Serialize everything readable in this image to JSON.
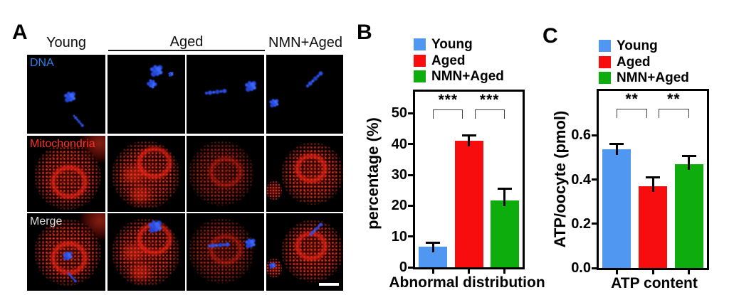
{
  "figure": {
    "panels": {
      "A": {
        "label": "A",
        "columns": [
          "Young",
          "Aged",
          "NMN+Aged"
        ],
        "row_labels": [
          "DNA",
          "Mitochondria",
          "Merge"
        ],
        "label_colors": {
          "dna": "#2f7fe6",
          "mitochondria": "#ff3228",
          "merge": "#dcdcdc"
        },
        "signal_colors": {
          "dna": "#2e55f2",
          "mitochondria": "#ef2012"
        },
        "scale_bar_color": "#ffffff"
      },
      "B": {
        "label": "B"
      },
      "C": {
        "label": "C"
      }
    }
  },
  "legend": {
    "position": "top-left-outside",
    "items": [
      {
        "label": "Young",
        "color": "#4f97f0"
      },
      {
        "label": "Aged",
        "color": "#f70d0d"
      },
      {
        "label": "NMN+Aged",
        "color": "#0cad0c"
      }
    ]
  },
  "chart_data": [
    {
      "id": "abnormal-distribution",
      "type": "bar",
      "title": "",
      "categories": [
        "Young",
        "Aged",
        "NMN+Aged"
      ],
      "values": [
        6.8,
        41,
        21.8
      ],
      "errors": [
        1.2,
        2.0,
        3.8
      ],
      "colors": [
        "#4f97f0",
        "#f70d0d",
        "#0cad0c"
      ],
      "xlabel": "Abnormal distribution",
      "ylabel": "percentage (%)",
      "yticks": [
        {
          "value": 0,
          "label": "0"
        },
        {
          "value": 10,
          "label": "10"
        },
        {
          "value": 20,
          "label": "20"
        },
        {
          "value": 30,
          "label": "30"
        },
        {
          "value": 40,
          "label": "40"
        },
        {
          "value": 50,
          "label": "50"
        }
      ],
      "ylim": [
        0,
        57
      ],
      "grid": false,
      "significance": [
        {
          "between": [
            0,
            1
          ],
          "label": "***"
        },
        {
          "between": [
            1,
            2
          ],
          "label": "***"
        }
      ]
    },
    {
      "id": "atp-content",
      "type": "bar",
      "title": "",
      "categories": [
        "Young",
        "Aged",
        "NMN+Aged"
      ],
      "values": [
        0.535,
        0.37,
        0.468
      ],
      "errors": [
        0.027,
        0.042,
        0.04
      ],
      "colors": [
        "#4f97f0",
        "#f70d0d",
        "#0cad0c"
      ],
      "xlabel": "ATP content",
      "ylabel": "ATP/oocyte (pmol)",
      "yticks": [
        {
          "value": 0,
          "label": "0.0"
        },
        {
          "value": 0.2,
          "label": "0.2"
        },
        {
          "value": 0.4,
          "label": "0.4"
        },
        {
          "value": 0.6,
          "label": "0.6"
        }
      ],
      "ylim": [
        0,
        0.8
      ],
      "grid": false,
      "significance": [
        {
          "between": [
            0,
            1
          ],
          "label": "**"
        },
        {
          "between": [
            1,
            2
          ],
          "label": "**"
        }
      ]
    }
  ]
}
